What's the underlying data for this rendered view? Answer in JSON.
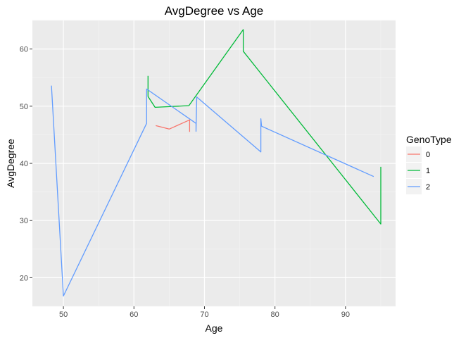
{
  "chart_data": {
    "type": "line",
    "title": "AvgDegree vs Age",
    "xlabel": "Age",
    "ylabel": "AvgDegree",
    "xlim": [
      45.6,
      97.1
    ],
    "ylim": [
      15.0,
      65.0
    ],
    "xticks": [
      50,
      60,
      70,
      80,
      90
    ],
    "yticks": [
      20,
      30,
      40,
      50,
      60
    ],
    "grid": true,
    "legend": {
      "title": "GenoType",
      "position": "right"
    },
    "series": [
      {
        "name": "0",
        "color": "#F8766D",
        "points": [
          [
            63.1,
            46.6
          ],
          [
            65.0,
            46.0
          ],
          [
            67.9,
            47.6
          ],
          [
            67.9,
            45.5
          ]
        ]
      },
      {
        "name": "1",
        "color": "#00BA38",
        "points": [
          [
            62.0,
            55.3
          ],
          [
            62.0,
            51.7
          ],
          [
            63.0,
            49.8
          ],
          [
            67.8,
            50.1
          ],
          [
            75.5,
            63.4
          ],
          [
            75.5,
            59.6
          ],
          [
            95.0,
            29.4
          ],
          [
            95.0,
            39.4
          ]
        ]
      },
      {
        "name": "2",
        "color": "#619CFF",
        "points": [
          [
            48.3,
            53.6
          ],
          [
            50.0,
            16.8
          ],
          [
            61.8,
            47.0
          ],
          [
            61.8,
            53.0
          ],
          [
            68.8,
            47.0
          ],
          [
            68.8,
            45.6
          ],
          [
            68.9,
            51.6
          ],
          [
            78.0,
            42.0
          ],
          [
            78.0,
            47.8
          ],
          [
            78.1,
            46.5
          ],
          [
            94.0,
            37.7
          ]
        ]
      }
    ]
  }
}
